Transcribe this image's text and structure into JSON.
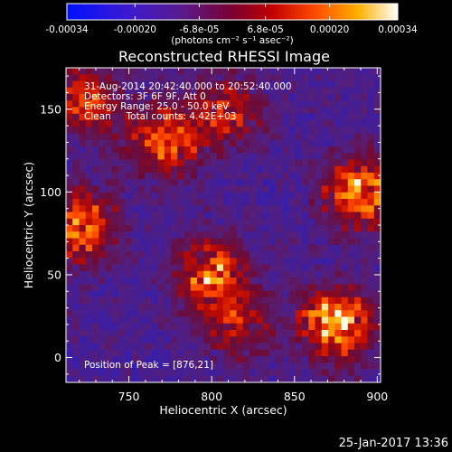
{
  "chart_data": {
    "type": "heatmap",
    "title": "Reconstructed RHESSI Image",
    "xlabel": "Heliocentric X (arcsec)",
    "ylabel": "Heliocentric Y (arcsec)",
    "xlim": [
      712,
      902
    ],
    "ylim": [
      -15,
      175
    ],
    "x_ticks": [
      "750",
      "800",
      "850",
      "900"
    ],
    "x_tick_values": [
      750,
      800,
      850,
      900
    ],
    "y_ticks": [
      "0",
      "50",
      "100",
      "150"
    ],
    "y_tick_values": [
      0,
      50,
      100,
      150
    ],
    "colorbar": {
      "tick_labels": [
        "-0.00034",
        "-0.00020",
        "-6.8e-05",
        "6.8e-05",
        "0.00020",
        "0.00034"
      ],
      "tick_values": [
        -0.00034,
        -0.0002,
        -6.8e-05,
        6.8e-05,
        0.0002,
        0.00034
      ],
      "range": [
        -0.00034,
        0.00034
      ],
      "units_label": "(photons cm⁻² s⁻¹ asec⁻²)",
      "colormap": "blue-purple-red-orange-yellow-white"
    },
    "annotations": [
      "31-Aug-2014 20:42:40.000 to 20:52:40.000",
      "Detectors: 3F 6F 9F, Att 0",
      "Energy Range: 25.0 - 50.0 keV",
      "Clean     Total counts: 4.42E+03",
      "Position of Peak = [876,21]"
    ],
    "peak": [
      876,
      21
    ],
    "bright_regions": [
      {
        "x": 876,
        "y": 21,
        "level": 1.0
      },
      {
        "x": 890,
        "y": 100,
        "level": 0.85
      },
      {
        "x": 720,
        "y": 80,
        "level": 0.75
      },
      {
        "x": 800,
        "y": 50,
        "level": 0.75
      },
      {
        "x": 772,
        "y": 130,
        "level": 0.7
      },
      {
        "x": 810,
        "y": 150,
        "level": 0.55
      },
      {
        "x": 815,
        "y": 20,
        "level": 0.45
      },
      {
        "x": 725,
        "y": 155,
        "level": 0.6
      }
    ]
  },
  "footer": {
    "timestamp": "25-Jan-2017 13:36"
  }
}
